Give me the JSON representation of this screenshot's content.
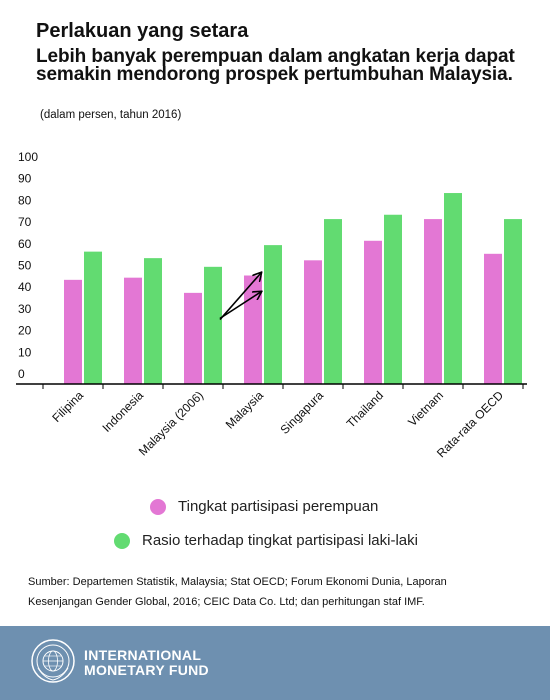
{
  "header": {
    "title": "Perlakuan yang setara",
    "subtitle": "Lebih banyak perempuan dalam angkatan kerja dapat semakin mendorong prospek pertumbuhan Malaysia.",
    "unit_note": "(dalam persen, tahun 2016)"
  },
  "chart_data": {
    "type": "bar",
    "categories": [
      "Filipina",
      "Indonesia",
      "Malaysia (2006)",
      "Malaysia",
      "Singapura",
      "Thailand",
      "Vietnam",
      "Rata-rata OECD"
    ],
    "series": [
      {
        "name": "Tingkat partisipasi perempuan",
        "color": "#e377d4",
        "values": [
          48,
          49,
          42,
          50,
          57,
          66,
          76,
          60
        ]
      },
      {
        "name": "Rasio terhadap tingkat partisipasi laki-laki",
        "color": "#62db71",
        "values": [
          61,
          58,
          54,
          64,
          76,
          78,
          88,
          76
        ]
      }
    ],
    "ylim": [
      0,
      100
    ],
    "yticks": [
      0,
      10,
      20,
      30,
      40,
      50,
      60,
      70,
      80,
      90,
      100
    ],
    "grid": false,
    "legend_position": "bottom",
    "annotations": [
      "arrows from Malaysia (2006) to Malaysia"
    ]
  },
  "legend": {
    "items": [
      {
        "label": "Tingkat partisipasi perempuan",
        "color": "#e377d4"
      },
      {
        "label": "Rasio terhadap tingkat partisipasi laki-laki",
        "color": "#62db71"
      }
    ]
  },
  "source": {
    "line1": "Sumber: Departemen Statistik, Malaysia; Stat OECD; Forum Ekonomi Dunia, Laporan",
    "line2": "Kesenjangan Gender Global, 2016; CEIC Data Co. Ltd; dan perhitungan staf IMF."
  },
  "footer": {
    "org_line1": "INTERNATIONAL",
    "org_line2": "MONETARY FUND",
    "logo_icon": "imf-seal-icon",
    "background": "#6e90b0"
  }
}
